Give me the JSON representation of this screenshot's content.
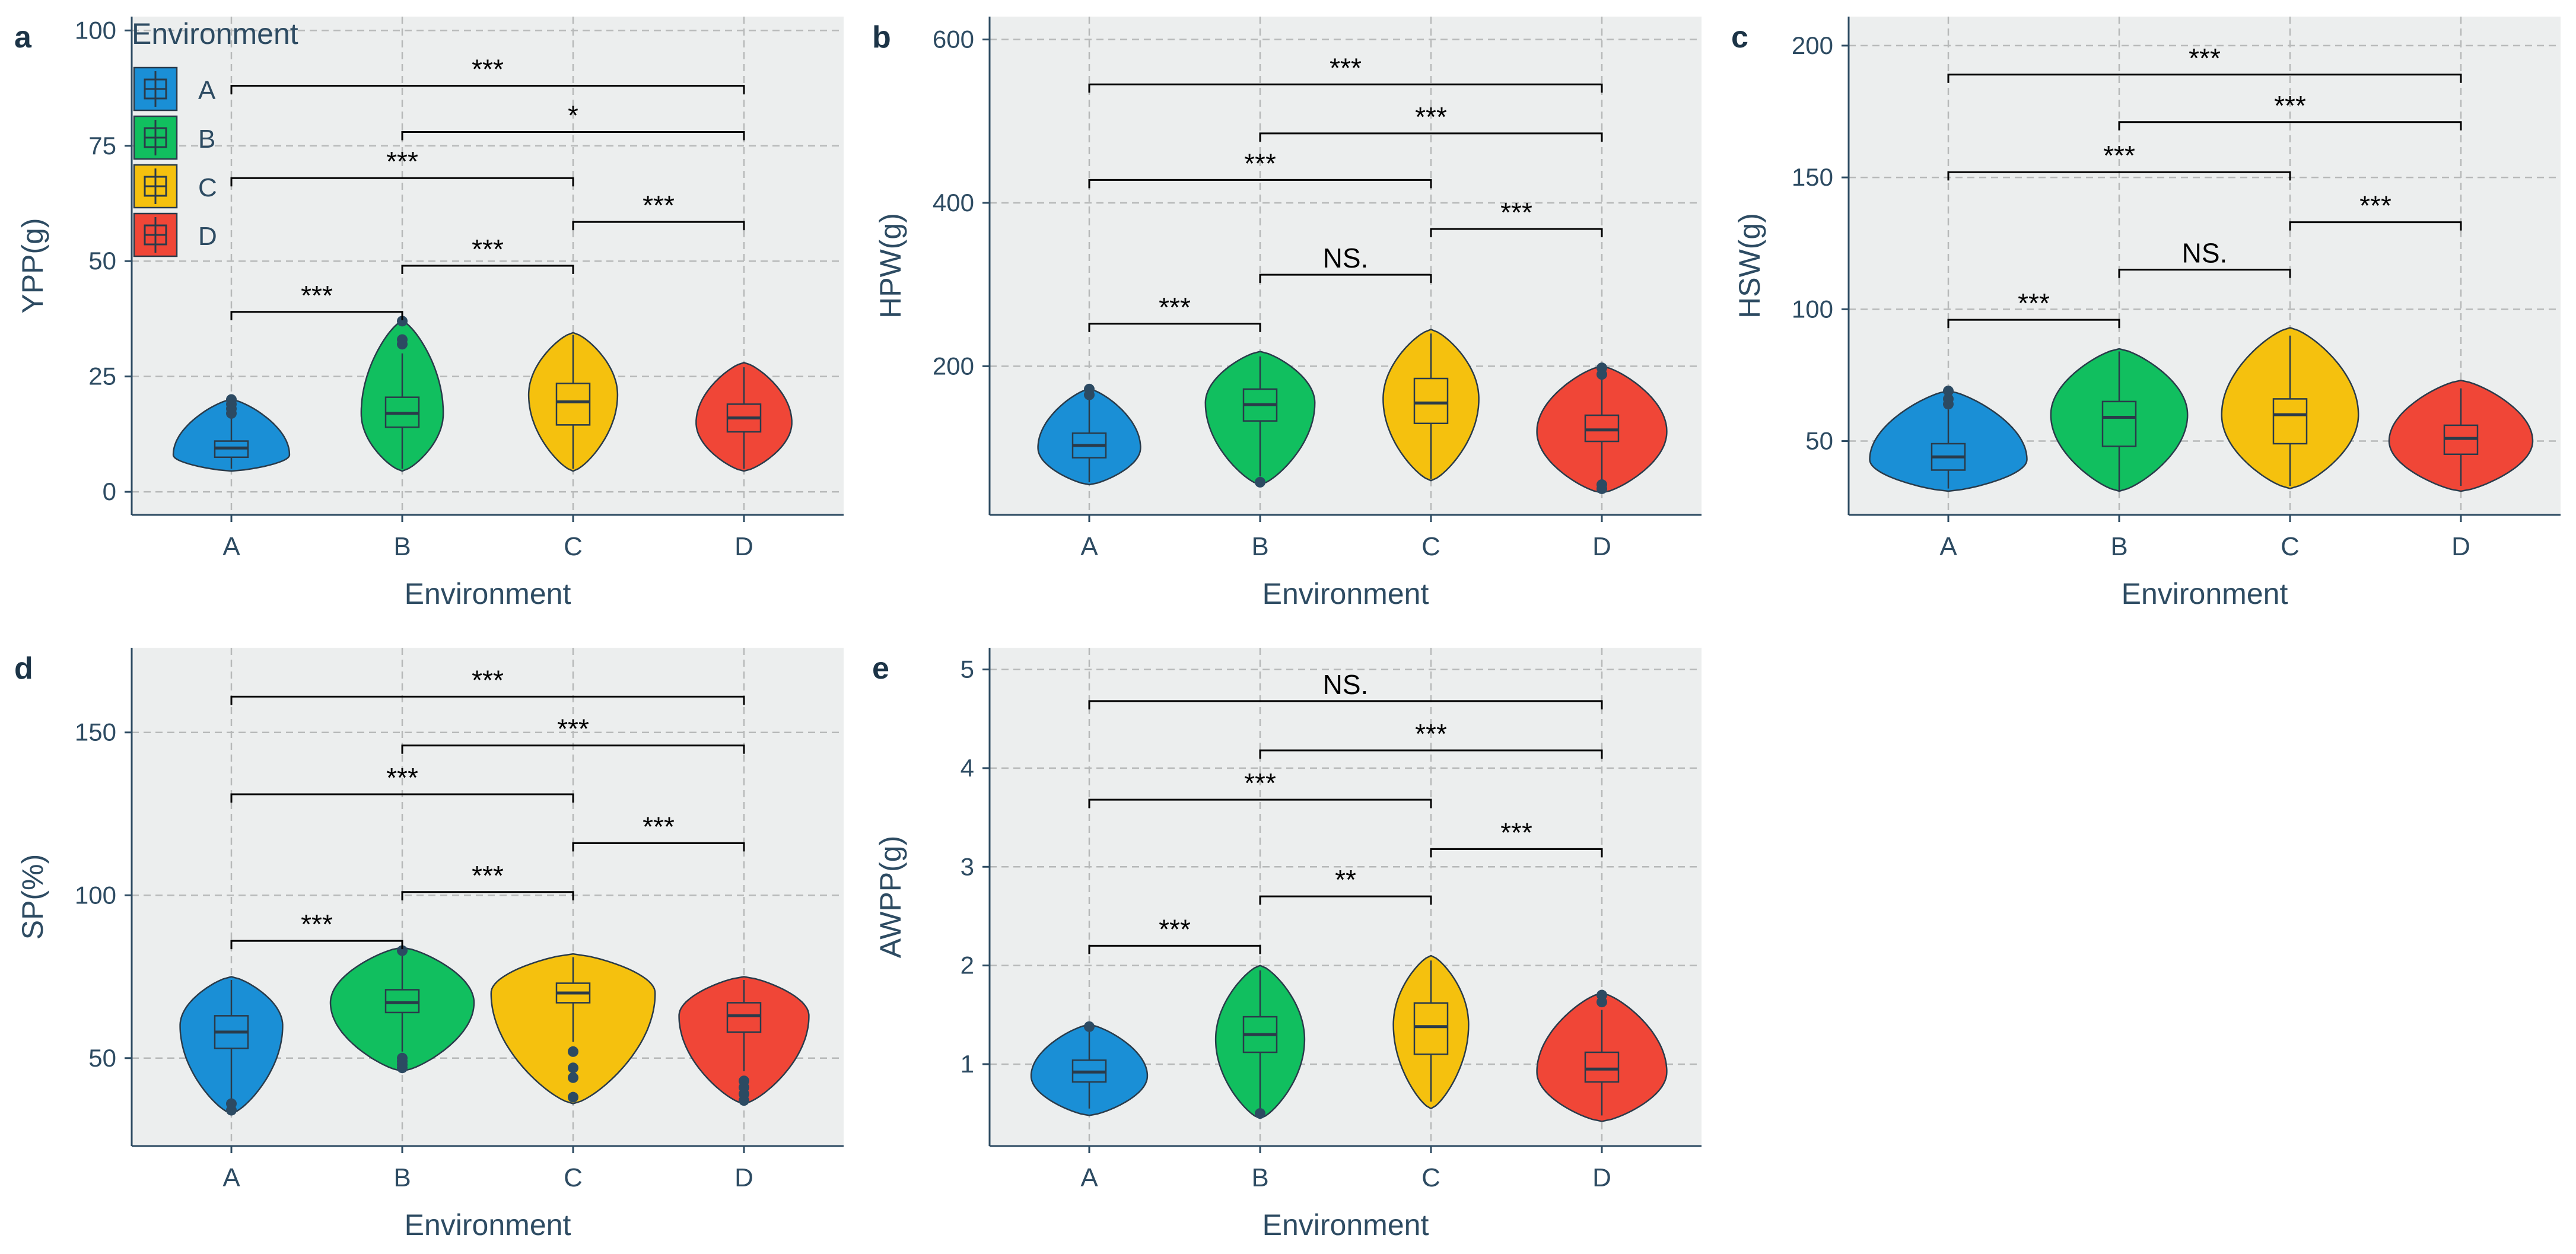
{
  "figure": {
    "legend": {
      "title": "Environment",
      "items": [
        {
          "label": "A",
          "color": "#1a8fd6"
        },
        {
          "label": "B",
          "color": "#11bf5f"
        },
        {
          "label": "C",
          "color": "#f5c10e"
        },
        {
          "label": "D",
          "color": "#f04637"
        }
      ]
    },
    "colors": {
      "panel_bg": "#eceeee",
      "grid": "#b7b9b9",
      "axis_text": "#2d4b62",
      "axis_line": "#2d4b62",
      "box_outline": "#2a3b4a",
      "outlier": "#2c4a62",
      "annotation": "#000000"
    }
  },
  "chart_data": [
    {
      "panel_label": "a",
      "type": "violin",
      "xlabel": "Environment",
      "ylabel": "YPP(g)",
      "categories": [
        "A",
        "B",
        "C",
        "D"
      ],
      "ylim": [
        -5,
        103
      ],
      "yticks": [
        0,
        25,
        50,
        75,
        100
      ],
      "ytick_labels": [
        "0",
        "25",
        "50",
        "75",
        "100"
      ],
      "violins": [
        {
          "min": 4.5,
          "max": 20,
          "mode": 8,
          "hw": 0.34,
          "q1": 7.5,
          "median": 9.5,
          "q3": 11,
          "w_lo": 5,
          "w_hi": 16,
          "outliers": [
            17,
            18,
            19,
            20
          ]
        },
        {
          "min": 4.5,
          "max": 37,
          "mode": 17,
          "hw": 0.24,
          "q1": 14,
          "median": 17,
          "q3": 20.5,
          "w_lo": 5,
          "w_hi": 30,
          "outliers": [
            32,
            33,
            37
          ]
        },
        {
          "min": 4.5,
          "max": 34.5,
          "mode": 21,
          "hw": 0.26,
          "q1": 14.5,
          "median": 19.5,
          "q3": 23.5,
          "w_lo": 5,
          "w_hi": 34
        },
        {
          "min": 4.5,
          "max": 28,
          "mode": 15,
          "hw": 0.28,
          "q1": 13,
          "median": 16,
          "q3": 19,
          "w_lo": 5,
          "w_hi": 27
        }
      ],
      "significance": [
        {
          "from": "A",
          "to": "B",
          "y": 39,
          "label": "***"
        },
        {
          "from": "B",
          "to": "C",
          "y": 49,
          "label": "***"
        },
        {
          "from": "C",
          "to": "D",
          "y": 58.5,
          "label": "***"
        },
        {
          "from": "A",
          "to": "C",
          "y": 68,
          "label": "***"
        },
        {
          "from": "B",
          "to": "D",
          "y": 78,
          "label": "*"
        },
        {
          "from": "A",
          "to": "D",
          "y": 88,
          "label": "***"
        }
      ]
    },
    {
      "panel_label": "b",
      "type": "violin",
      "xlabel": "Environment",
      "ylabel": "HPW(g)",
      "categories": [
        "A",
        "B",
        "C",
        "D"
      ],
      "ylim": [
        18,
        628
      ],
      "yticks": [
        200,
        400,
        600
      ],
      "ytick_labels": [
        "200",
        "400",
        "600"
      ],
      "violins": [
        {
          "min": 55,
          "max": 172,
          "mode": 100,
          "hw": 0.3,
          "q1": 88,
          "median": 103,
          "q3": 118,
          "w_lo": 58,
          "w_hi": 160,
          "outliers": [
            165,
            172
          ]
        },
        {
          "min": 55,
          "max": 218,
          "mode": 155,
          "hw": 0.32,
          "q1": 133,
          "median": 153,
          "q3": 172,
          "w_lo": 65,
          "w_hi": 212,
          "outliers": [
            58
          ]
        },
        {
          "min": 60,
          "max": 245,
          "mode": 160,
          "hw": 0.28,
          "q1": 130,
          "median": 155,
          "q3": 185,
          "w_lo": 62,
          "w_hi": 240
        },
        {
          "min": 45,
          "max": 200,
          "mode": 120,
          "hw": 0.38,
          "q1": 108,
          "median": 122,
          "q3": 140,
          "w_lo": 60,
          "w_hi": 185,
          "outliers": [
            50,
            55,
            190,
            198
          ]
        }
      ],
      "significance": [
        {
          "from": "A",
          "to": "B",
          "y": 252,
          "label": "***"
        },
        {
          "from": "B",
          "to": "C",
          "y": 312,
          "label": "NS."
        },
        {
          "from": "C",
          "to": "D",
          "y": 368,
          "label": "***"
        },
        {
          "from": "A",
          "to": "C",
          "y": 428,
          "label": "***"
        },
        {
          "from": "B",
          "to": "D",
          "y": 485,
          "label": "***"
        },
        {
          "from": "A",
          "to": "D",
          "y": 545,
          "label": "***"
        }
      ]
    },
    {
      "panel_label": "c",
      "type": "violin",
      "xlabel": "Environment",
      "ylabel": "HSW(g)",
      "categories": [
        "A",
        "B",
        "C",
        "D"
      ],
      "ylim": [
        22,
        211
      ],
      "yticks": [
        50,
        100,
        150,
        200
      ],
      "ytick_labels": [
        "50",
        "100",
        "150",
        "200"
      ],
      "violins": [
        {
          "min": 31,
          "max": 69,
          "mode": 43,
          "hw": 0.46,
          "q1": 39,
          "median": 44,
          "q3": 49,
          "w_lo": 32,
          "w_hi": 62,
          "outliers": [
            64,
            66,
            69
          ]
        },
        {
          "min": 31,
          "max": 85,
          "mode": 60,
          "hw": 0.4,
          "q1": 48,
          "median": 59,
          "q3": 65,
          "w_lo": 31,
          "w_hi": 84
        },
        {
          "min": 32,
          "max": 93,
          "mode": 60,
          "hw": 0.4,
          "q1": 49,
          "median": 60,
          "q3": 66,
          "w_lo": 33,
          "w_hi": 90
        },
        {
          "min": 31,
          "max": 73,
          "mode": 50,
          "hw": 0.42,
          "q1": 45,
          "median": 51,
          "q3": 56,
          "w_lo": 33,
          "w_hi": 70
        }
      ],
      "significance": [
        {
          "from": "A",
          "to": "B",
          "y": 96,
          "label": "***"
        },
        {
          "from": "B",
          "to": "C",
          "y": 115,
          "label": "NS."
        },
        {
          "from": "C",
          "to": "D",
          "y": 133,
          "label": "***"
        },
        {
          "from": "A",
          "to": "C",
          "y": 152,
          "label": "***"
        },
        {
          "from": "B",
          "to": "D",
          "y": 171,
          "label": "***"
        },
        {
          "from": "A",
          "to": "D",
          "y": 189,
          "label": "***"
        }
      ]
    },
    {
      "panel_label": "d",
      "type": "violin",
      "xlabel": "Environment",
      "ylabel": "SP(%)",
      "categories": [
        "A",
        "B",
        "C",
        "D"
      ],
      "ylim": [
        23,
        176
      ],
      "yticks": [
        50,
        100,
        150
      ],
      "ytick_labels": [
        "50",
        "100",
        "150"
      ],
      "violins": [
        {
          "min": 33,
          "max": 75,
          "mode": 60,
          "hw": 0.3,
          "q1": 53,
          "median": 58,
          "q3": 63,
          "w_lo": 37,
          "w_hi": 74,
          "outliers": [
            34,
            36
          ]
        },
        {
          "min": 46,
          "max": 84,
          "mode": 67,
          "hw": 0.42,
          "q1": 64,
          "median": 67,
          "q3": 71,
          "w_lo": 52,
          "w_hi": 82,
          "outliers": [
            47,
            48,
            49,
            50,
            83
          ]
        },
        {
          "min": 36,
          "max": 82,
          "mode": 70,
          "hw": 0.48,
          "q1": 67,
          "median": 70,
          "q3": 73,
          "w_lo": 55,
          "w_hi": 81,
          "outliers": [
            38,
            44,
            47,
            52
          ]
        },
        {
          "min": 36,
          "max": 75,
          "mode": 63,
          "hw": 0.38,
          "q1": 58,
          "median": 63,
          "q3": 67,
          "w_lo": 46,
          "w_hi": 74,
          "outliers": [
            37,
            39,
            41,
            43
          ]
        }
      ],
      "significance": [
        {
          "from": "A",
          "to": "B",
          "y": 86,
          "label": "***"
        },
        {
          "from": "B",
          "to": "C",
          "y": 101,
          "label": "***"
        },
        {
          "from": "C",
          "to": "D",
          "y": 116,
          "label": "***"
        },
        {
          "from": "A",
          "to": "C",
          "y": 131,
          "label": "***"
        },
        {
          "from": "B",
          "to": "D",
          "y": 146,
          "label": "***"
        },
        {
          "from": "A",
          "to": "D",
          "y": 161,
          "label": "***"
        }
      ]
    },
    {
      "panel_label": "e",
      "type": "violin",
      "xlabel": "Environment",
      "ylabel": "AWPP(g)",
      "categories": [
        "A",
        "B",
        "C",
        "D"
      ],
      "ylim": [
        0.17,
        5.22
      ],
      "yticks": [
        1,
        2,
        3,
        4,
        5
      ],
      "ytick_labels": [
        "1",
        "2",
        "3",
        "4",
        "5"
      ],
      "violins": [
        {
          "min": 0.48,
          "max": 1.4,
          "mode": 0.88,
          "hw": 0.34,
          "q1": 0.82,
          "median": 0.92,
          "q3": 1.04,
          "w_lo": 0.55,
          "w_hi": 1.35,
          "outliers": [
            1.38
          ]
        },
        {
          "min": 0.45,
          "max": 2.0,
          "mode": 1.25,
          "hw": 0.26,
          "q1": 1.12,
          "median": 1.3,
          "q3": 1.48,
          "w_lo": 0.55,
          "w_hi": 1.95,
          "outliers": [
            0.5
          ]
        },
        {
          "min": 0.55,
          "max": 2.1,
          "mode": 1.4,
          "hw": 0.22,
          "q1": 1.1,
          "median": 1.38,
          "q3": 1.62,
          "w_lo": 0.62,
          "w_hi": 2.05
        },
        {
          "min": 0.42,
          "max": 1.72,
          "mode": 0.92,
          "hw": 0.38,
          "q1": 0.82,
          "median": 0.95,
          "q3": 1.12,
          "w_lo": 0.48,
          "w_hi": 1.55,
          "outliers": [
            1.63,
            1.7
          ]
        }
      ],
      "significance": [
        {
          "from": "A",
          "to": "B",
          "y": 2.2,
          "label": "***"
        },
        {
          "from": "B",
          "to": "C",
          "y": 2.7,
          "label": "**"
        },
        {
          "from": "C",
          "to": "D",
          "y": 3.18,
          "label": "***"
        },
        {
          "from": "A",
          "to": "C",
          "y": 3.68,
          "label": "***"
        },
        {
          "from": "B",
          "to": "D",
          "y": 4.18,
          "label": "***"
        },
        {
          "from": "A",
          "to": "D",
          "y": 4.68,
          "label": "NS."
        }
      ]
    }
  ]
}
